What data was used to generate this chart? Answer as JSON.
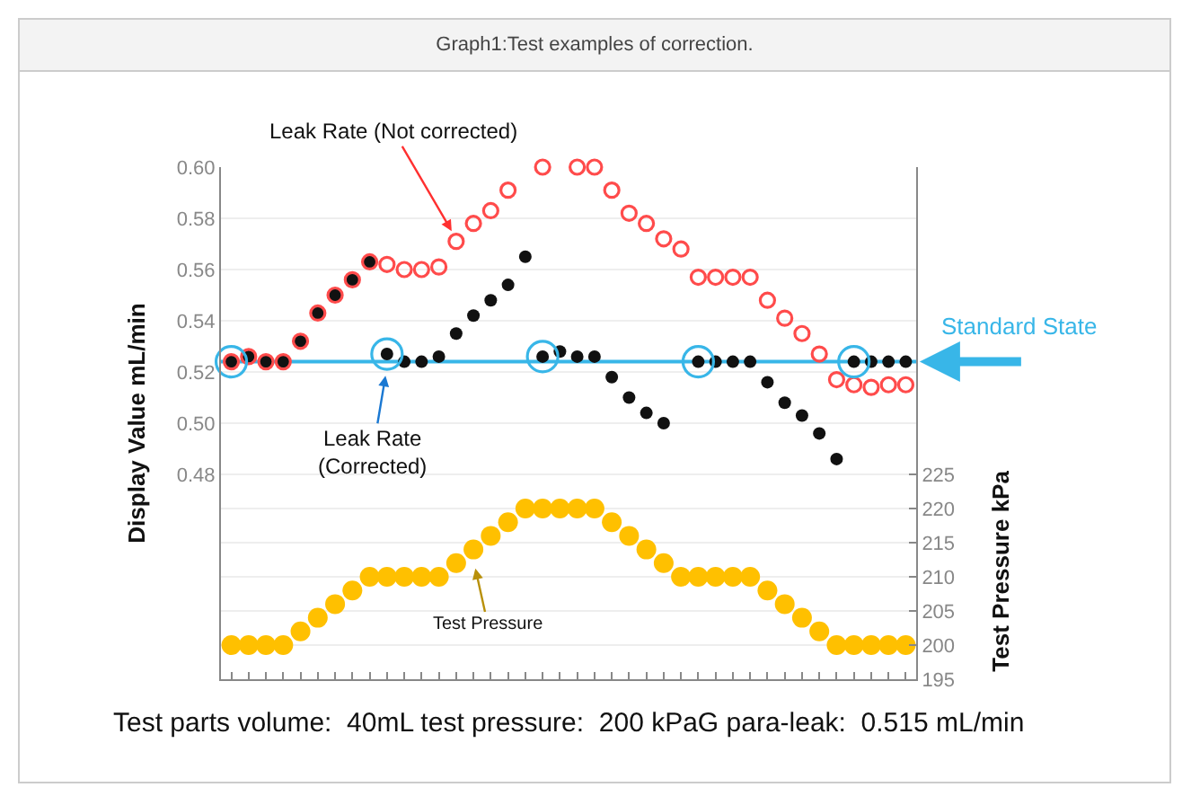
{
  "chart_data": {
    "type": "scatter",
    "title": "Graph1:Test examples of correction.",
    "ylabel": "Display Value mL/min",
    "y2label": "Test Pressure kPa",
    "categories": [
      null,
      null,
      null,
      null,
      null,
      null,
      null,
      null,
      null,
      null,
      null,
      null,
      null,
      null,
      null,
      null,
      null,
      null,
      null,
      null,
      null,
      null,
      null,
      null,
      null,
      null,
      null,
      null,
      null,
      null,
      null,
      null,
      null,
      null,
      null,
      null,
      null,
      null,
      null,
      null
    ],
    "series": [
      {
        "color": "#111111",
        "values": [
          0.524,
          0.526,
          0.524,
          0.524,
          0.532,
          0.543,
          0.55,
          0.556,
          0.563,
          0.527,
          0.524,
          0.524,
          0.526,
          0.535,
          0.542,
          0.548,
          0.554,
          0.565,
          0.526,
          0.528,
          0.526,
          0.526,
          0.518,
          0.51,
          0.504,
          0.5,
          null,
          0.524,
          0.524,
          0.524,
          0.524,
          0.516,
          0.508,
          0.503,
          0.496,
          0.486,
          0.524,
          0.524,
          0.524,
          0.524
        ]
      },
      {
        "color": "#ff4b4b",
        "values": [
          0.524,
          0.526,
          0.524,
          0.524,
          0.532,
          0.543,
          0.55,
          0.556,
          0.563,
          0.562,
          0.56,
          0.56,
          0.561,
          0.571,
          0.578,
          0.583,
          0.591,
          null,
          0.6,
          null,
          0.6,
          0.6,
          0.591,
          0.582,
          0.578,
          0.572,
          0.568,
          0.557,
          0.557,
          0.557,
          0.557,
          0.548,
          0.541,
          0.535,
          0.527,
          0.517,
          0.515,
          0.514,
          0.515,
          0.515
        ]
      },
      {
        "color": "#38b6e8",
        "values": [
          0.524,
          null,
          null,
          null,
          null,
          null,
          null,
          null,
          null,
          0.527,
          null,
          null,
          null,
          null,
          null,
          null,
          null,
          null,
          0.526,
          null,
          null,
          null,
          null,
          null,
          null,
          null,
          null,
          0.524,
          null,
          null,
          null,
          null,
          null,
          null,
          null,
          null,
          0.524,
          null,
          null,
          null
        ]
      },
      {
        "color": "#ffc000",
        "axis": "y2",
        "values": [
          200,
          200,
          200,
          200,
          202,
          204,
          206,
          208,
          210,
          210,
          210,
          210,
          210,
          212,
          214,
          216,
          218,
          220,
          220,
          220,
          220,
          220,
          218,
          216,
          214,
          212,
          210,
          210,
          210,
          210,
          210,
          208,
          206,
          204,
          202,
          200,
          200,
          200,
          200,
          200
        ]
      }
    ],
    "ylim": [
      0.4,
      0.6
    ],
    "yticks": [
      0.48,
      {
        "value": 0.5,
        "label": "0.50"
      },
      0.52,
      0.54,
      0.56,
      0.58,
      {
        "value": 0.6,
        "label": "0.60"
      }
    ],
    "y2lim": [
      195,
      270
    ],
    "y2ticks": [
      195,
      200,
      205,
      210,
      215,
      220,
      225
    ],
    "ref_lines": [
      {
        "axis": "y",
        "value": 0.524,
        "label": "Standard State",
        "color": "#38b6e8"
      }
    ],
    "annotations": [
      "Leak Rate (Not corrected)",
      "Leak Rate\n(Corrected)",
      "Test Pressure",
      "Test parts volume:  40mL test pressure:  200 kPaG para-leak:  0.515 mL/min"
    ],
    "grid": "y",
    "marker": "circle",
    "tick_labels": "y"
  }
}
